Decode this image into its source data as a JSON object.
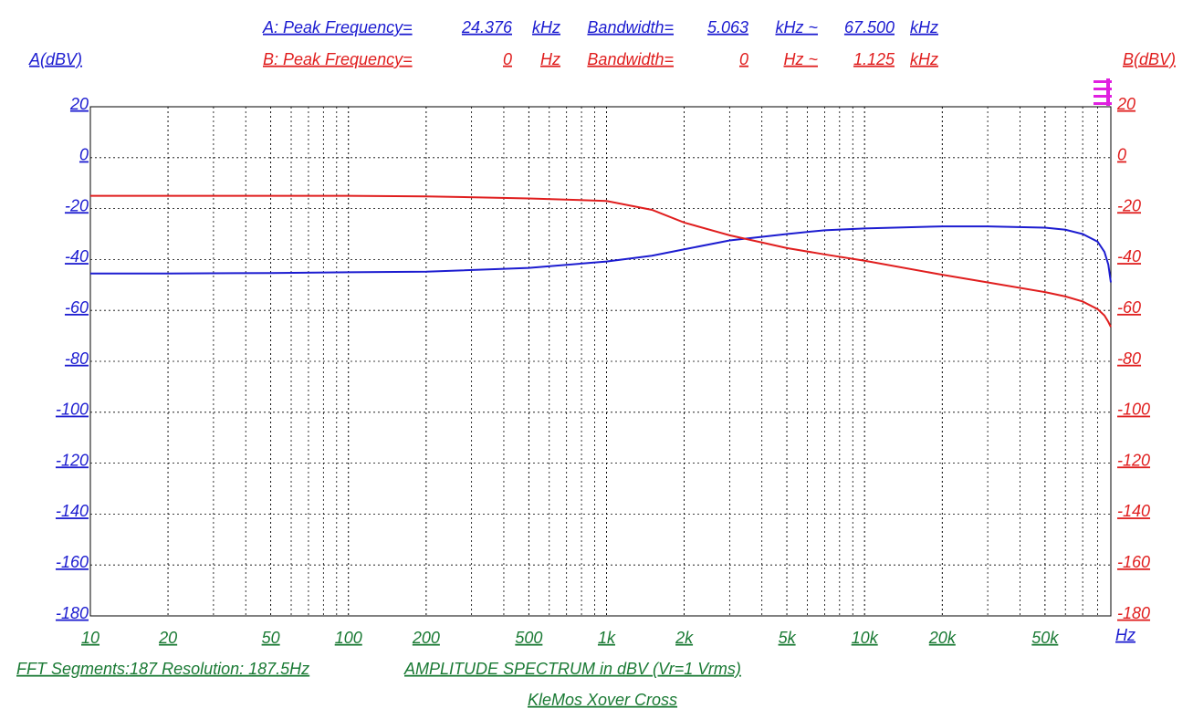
{
  "chart_data": {
    "type": "line",
    "header": [
      {
        "label": "A: Peak Frequency=",
        "peak": "24.376",
        "peak_unit": "kHz",
        "bw_label": "Bandwidth=",
        "bw_low": "5.063",
        "bw_low_unit": "kHz ~",
        "bw_high": "67.500",
        "bw_high_unit": "kHz"
      },
      {
        "label": "B: Peak Frequency=",
        "peak": "0",
        "peak_unit": "Hz",
        "bw_label": "Bandwidth=",
        "bw_low": "0",
        "bw_low_unit": "Hz ~",
        "bw_high": "1.125",
        "bw_high_unit": "kHz"
      }
    ],
    "ylabel": "A(dBV)",
    "y2label": "B(dBV)",
    "xunit": "Hz",
    "footer_left": "FFT Segments:187   Resolution: 187.5Hz",
    "footer_center": "AMPLITUDE SPECTRUM in dBV (Vr=1 Vrms)",
    "footer_title": "KleMos Xover Cross",
    "x_log": true,
    "grid": true,
    "xlim": [
      10,
      90000
    ],
    "xticks": [
      10,
      20,
      50,
      100,
      200,
      500,
      {
        "value": 1000,
        "label": "1k"
      },
      {
        "value": 2000,
        "label": "2k"
      },
      {
        "value": 5000,
        "label": "5k"
      },
      {
        "value": 10000,
        "label": "10k"
      },
      {
        "value": 20000,
        "label": "20k"
      },
      {
        "value": 50000,
        "label": "50k"
      }
    ],
    "ylim": [
      -180,
      20
    ],
    "yticks": [
      20,
      0,
      -20,
      -40,
      -60,
      -80,
      -100,
      -120,
      -140,
      -160,
      -180
    ],
    "y2lim": [
      -180,
      20
    ],
    "y2ticks": [
      20,
      0,
      -20,
      -40,
      -60,
      -80,
      -100,
      -120,
      -140,
      -160,
      -180
    ],
    "x": [
      10,
      20,
      50,
      100,
      200,
      500,
      1000,
      1500,
      2000,
      3000,
      5000,
      7000,
      10000,
      20000,
      30000,
      50000,
      60000,
      70000,
      80000,
      85000,
      88000,
      90000
    ],
    "series": [
      {
        "name": "A",
        "color": "#1c1cd0",
        "values": [
          -45.5,
          -45.5,
          -45.3,
          -45,
          -44.8,
          -43.3,
          -40.8,
          -38.5,
          -36,
          -32.5,
          -30,
          -28.5,
          -27.8,
          -27,
          -27,
          -27.5,
          -28.3,
          -30,
          -33,
          -37,
          -42,
          -49
        ]
      },
      {
        "name": "B",
        "color": "#e01e1e",
        "axis": "y2",
        "values": [
          -15,
          -15,
          -15,
          -15,
          -15.2,
          -16,
          -17,
          -20.5,
          -25.5,
          -30.5,
          -35.5,
          -38,
          -40.5,
          -46,
          -49,
          -52.8,
          -54.5,
          -56.5,
          -59.5,
          -62,
          -64.5,
          -66.5
        ]
      }
    ]
  }
}
